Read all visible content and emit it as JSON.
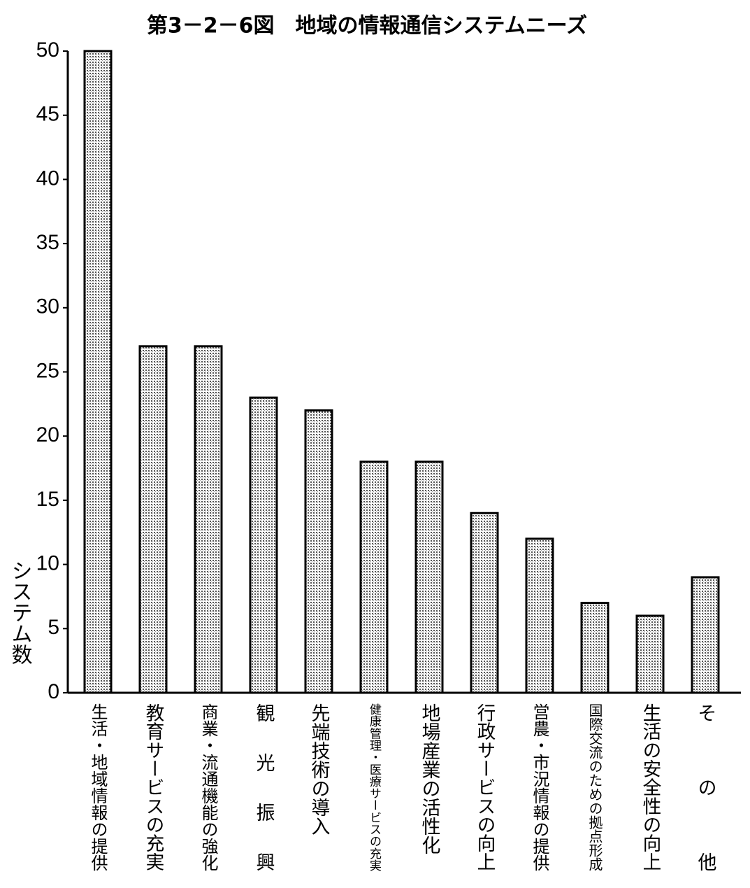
{
  "chart_data": {
    "type": "bar",
    "title": "第3－2－6図　地域の情報通信システムニーズ",
    "y_label": "システム数",
    "categories": [
      "生活・地域情報の提供",
      "教育サービスの充実",
      "商業・流通機能の強化",
      "観光振興",
      "先端技術の導入",
      "健康管理・医療サービスの充実",
      "地場産業の活性化",
      "行政サービスの向上",
      "営農・市況情報の提供",
      "国際交流のための拠点形成",
      "生活の安全性の向上",
      "その他"
    ],
    "values": [
      50,
      27,
      27,
      23,
      22,
      18,
      18,
      14,
      12,
      7,
      6,
      9
    ],
    "color": "#c8c8c8",
    "ylim": [
      0,
      50
    ],
    "yticks": [
      0,
      5,
      10,
      15,
      20,
      25,
      30,
      35,
      40,
      45,
      50
    ],
    "grid": false
  }
}
